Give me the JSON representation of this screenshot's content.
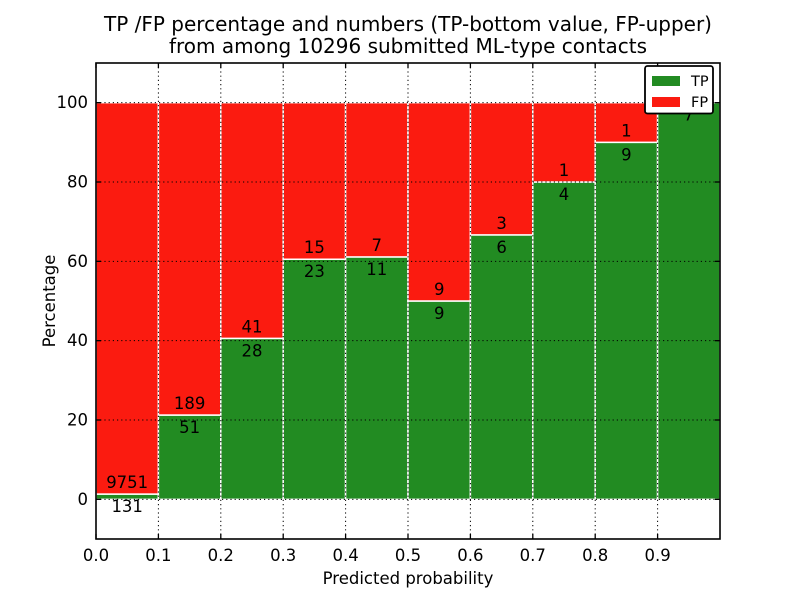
{
  "chart_data": {
    "type": "bar",
    "stacked": true,
    "title_line1": "TP /FP percentage and numbers (TP-bottom value, FP-upper)",
    "title_line2": "from among 10296 submitted ML-type contacts",
    "xlabel": "Predicted probability",
    "ylabel": "Percentage",
    "xlim": [
      0.0,
      1.0
    ],
    "ylim": [
      -10,
      110
    ],
    "xtick_values": [
      0.0,
      0.1,
      0.2,
      0.3,
      0.4,
      0.5,
      0.6,
      0.7,
      0.8,
      0.9
    ],
    "xtick_labels": [
      "0.0",
      "0.1",
      "0.2",
      "0.3",
      "0.4",
      "0.5",
      "0.6",
      "0.7",
      "0.8",
      "0.9"
    ],
    "ytick_values": [
      0,
      20,
      40,
      60,
      80,
      100
    ],
    "ytick_labels": [
      "0",
      "20",
      "40",
      "60",
      "80",
      "100"
    ],
    "grid": "dotted-black-on-top",
    "bar_edge_color": "#ffffff",
    "colors": {
      "tp": "#228b22",
      "fp": "#fb1b10",
      "axis": "#000000",
      "background": "#ffffff"
    },
    "series": [
      {
        "name": "TP",
        "color": "#228b22"
      },
      {
        "name": "FP",
        "color": "#fb1b10"
      }
    ],
    "bins": [
      {
        "x0": 0.0,
        "x1": 0.1,
        "tp": 131,
        "fp": 9751,
        "tp_label": "131",
        "fp_label": "9751"
      },
      {
        "x0": 0.1,
        "x1": 0.2,
        "tp": 51,
        "fp": 189,
        "tp_label": "51",
        "fp_label": "189"
      },
      {
        "x0": 0.2,
        "x1": 0.3,
        "tp": 28,
        "fp": 41,
        "tp_label": "28",
        "fp_label": "41"
      },
      {
        "x0": 0.3,
        "x1": 0.4,
        "tp": 23,
        "fp": 15,
        "tp_label": "23",
        "fp_label": "15"
      },
      {
        "x0": 0.4,
        "x1": 0.5,
        "tp": 11,
        "fp": 7,
        "tp_label": "11",
        "fp_label": "7"
      },
      {
        "x0": 0.5,
        "x1": 0.6,
        "tp": 9,
        "fp": 9,
        "tp_label": "9",
        "fp_label": "9"
      },
      {
        "x0": 0.6,
        "x1": 0.7,
        "tp": 6,
        "fp": 3,
        "tp_label": "6",
        "fp_label": "3"
      },
      {
        "x0": 0.7,
        "x1": 0.8,
        "tp": 4,
        "fp": 1,
        "tp_label": "4",
        "fp_label": "1"
      },
      {
        "x0": 0.8,
        "x1": 0.9,
        "tp": 9,
        "fp": 1,
        "tp_label": "9",
        "fp_label": "1"
      },
      {
        "x0": 0.9,
        "x1": 1.0,
        "tp": 7,
        "fp": 0,
        "tp_label": "7",
        "fp_label": ""
      }
    ],
    "bar_height_rule": "green segment height = tp/(tp+fp)*100, red segment fills up to 100",
    "legend": {
      "position": "upper right",
      "entries": [
        {
          "label": "TP",
          "color": "#228b22"
        },
        {
          "label": "FP",
          "color": "#fb1b10"
        }
      ]
    }
  }
}
